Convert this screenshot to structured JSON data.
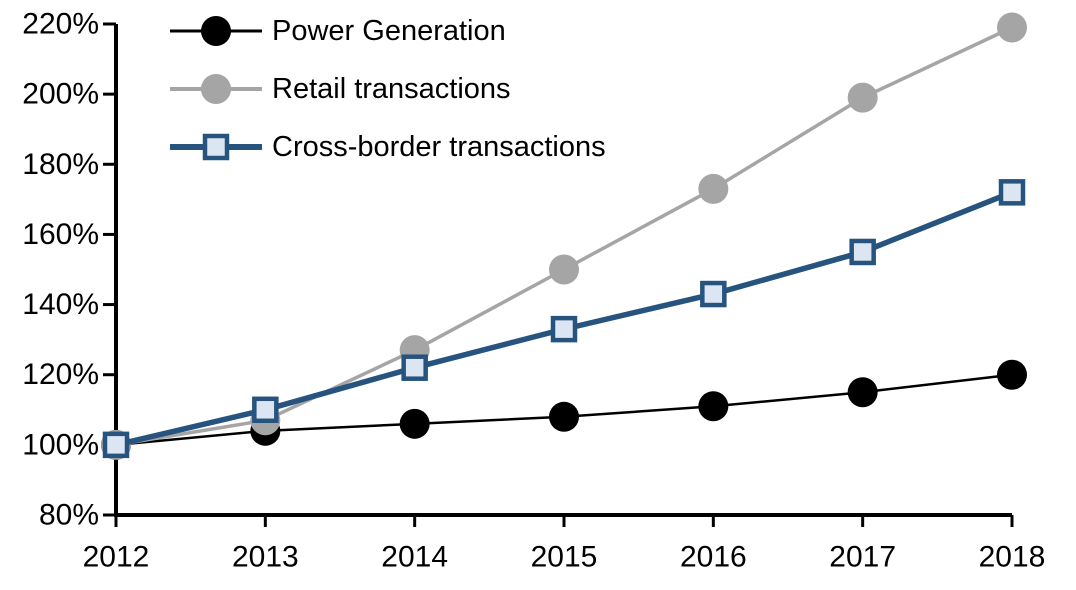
{
  "chart_data": {
    "type": "line",
    "title": "",
    "categories": [
      "2012",
      "2013",
      "2014",
      "2015",
      "2016",
      "2017",
      "2018"
    ],
    "y_tick_labels": [
      "80%",
      "100%",
      "120%",
      "140%",
      "160%",
      "180%",
      "200%",
      "220%"
    ],
    "y_ticks": [
      80,
      100,
      120,
      140,
      160,
      180,
      200,
      220
    ],
    "ylim": [
      80,
      220
    ],
    "grid": false,
    "legend_position": "top-left",
    "axis_color": "#000000",
    "series": [
      {
        "name": "Power Generation",
        "color": "#000000",
        "marker": "circle",
        "marker_fill": "#000000",
        "line_width": 2.5,
        "values": [
          100,
          104,
          106,
          108,
          111,
          115,
          120
        ]
      },
      {
        "name": "Retail transactions",
        "color": "#a5a5a5",
        "marker": "circle",
        "marker_fill": "#a5a5a5",
        "line_width": 3.5,
        "values": [
          100,
          107,
          127,
          150,
          173,
          199,
          219
        ]
      },
      {
        "name": "Cross-border transactions",
        "color": "#27537f",
        "marker": "square",
        "marker_fill": "#dce6f2",
        "line_width": 5.5,
        "values": [
          100,
          110,
          122,
          133,
          143,
          155,
          172
        ]
      }
    ]
  }
}
